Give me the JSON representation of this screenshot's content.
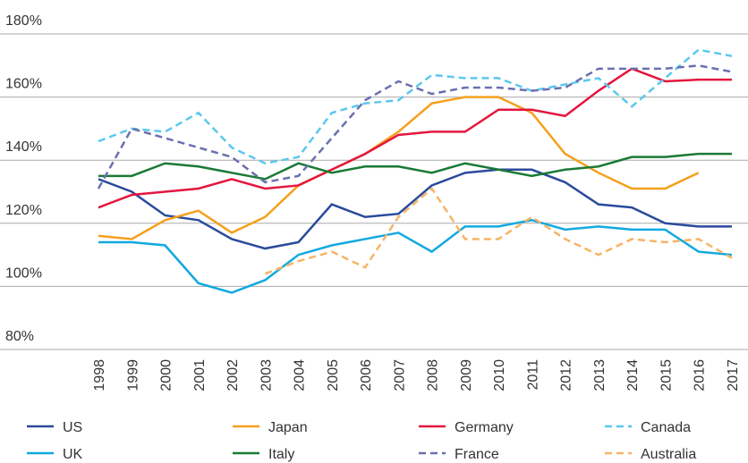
{
  "chart_data": {
    "type": "line",
    "categories": [
      "1998",
      "1999",
      "2000",
      "2001",
      "2002",
      "2003",
      "2004",
      "2005",
      "2006",
      "2007",
      "2008",
      "2009",
      "2010",
      "2011",
      "2012",
      "2013",
      "2014",
      "2015",
      "2016",
      "2017"
    ],
    "ylim": [
      80,
      180
    ],
    "yticks": [
      {
        "value": 80,
        "label": "80%"
      },
      {
        "value": 100,
        "label": "100%"
      },
      {
        "value": 120,
        "label": "120%"
      },
      {
        "value": 140,
        "label": "140%"
      },
      {
        "value": 160,
        "label": "160%"
      },
      {
        "value": 180,
        "label": "180%"
      }
    ],
    "grid": true,
    "legend": "bottom",
    "series": [
      {
        "name": "US",
        "color": "#2a4a9b",
        "dashed": false,
        "values": [
          134,
          130,
          122.5,
          121,
          115,
          112,
          114,
          126,
          122,
          123,
          132,
          136,
          137,
          137,
          133,
          126,
          125,
          120,
          119,
          119
        ]
      },
      {
        "name": "Japan",
        "color": "#f5a01a",
        "dashed": false,
        "values": [
          116,
          115,
          121,
          124,
          117,
          122,
          132,
          137,
          142,
          149,
          158,
          160,
          160,
          155,
          142,
          136,
          131,
          131,
          136,
          null
        ]
      },
      {
        "name": "Germany",
        "color": "#e3173e",
        "dashed": false,
        "values": [
          125,
          129,
          130,
          131,
          134,
          131,
          132,
          137,
          142,
          148,
          149,
          149,
          156,
          156,
          154,
          162,
          169,
          165,
          165.5,
          165.5
        ]
      },
      {
        "name": "Canada",
        "color": "#5bc8ee",
        "dashed": true,
        "values": [
          146,
          150,
          149,
          155,
          144,
          139,
          141,
          155,
          158,
          159,
          167,
          166,
          166,
          162,
          164,
          166,
          157,
          166,
          175,
          173
        ]
      },
      {
        "name": "UK",
        "color": "#12a9e0",
        "dashed": false,
        "values": [
          114,
          114,
          113,
          101,
          98,
          102,
          110,
          113,
          115,
          117,
          111,
          119,
          119,
          121,
          118,
          119,
          118,
          118,
          111,
          110
        ]
      },
      {
        "name": "Italy",
        "color": "#1a7a35",
        "dashed": false,
        "values": [
          135,
          135,
          139,
          138,
          136,
          134,
          139,
          136,
          138,
          138,
          136,
          139,
          137,
          135,
          137,
          138,
          141,
          141,
          142,
          142
        ]
      },
      {
        "name": "France",
        "color": "#6a70b0",
        "dashed": true,
        "values": [
          131,
          150,
          147,
          144,
          141,
          133,
          135,
          147,
          159,
          165,
          161,
          163,
          163,
          162,
          163,
          169,
          169,
          169,
          170,
          168
        ]
      },
      {
        "name": "Australia",
        "color": "#f7b366",
        "dashed": true,
        "values": [
          null,
          null,
          null,
          null,
          null,
          104,
          108,
          111,
          106,
          122,
          131,
          115,
          115,
          122,
          115,
          110,
          115,
          114,
          115,
          109
        ]
      }
    ]
  }
}
